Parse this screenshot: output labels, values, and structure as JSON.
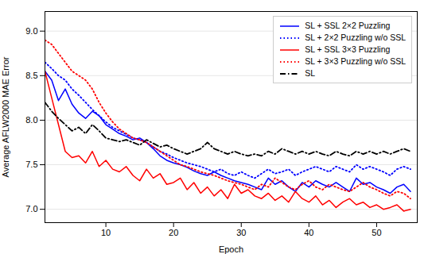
{
  "chart_data": {
    "type": "line",
    "xlabel": "Epoch",
    "ylabel": "Average AFLW2000 MAE Error",
    "x": [
      1,
      2,
      3,
      4,
      5,
      6,
      7,
      8,
      9,
      10,
      11,
      12,
      13,
      14,
      15,
      16,
      17,
      18,
      19,
      20,
      21,
      22,
      23,
      24,
      25,
      26,
      27,
      28,
      29,
      30,
      31,
      32,
      33,
      34,
      35,
      36,
      37,
      38,
      39,
      40,
      41,
      42,
      43,
      44,
      45,
      46,
      47,
      48,
      49,
      50,
      51,
      52,
      53,
      54,
      55
    ],
    "xlim": [
      1,
      56
    ],
    "ylim": [
      6.85,
      9.22
    ],
    "xticks": [
      10,
      20,
      30,
      40,
      50
    ],
    "yticks": [
      {
        "value": 7,
        "label": "7.0"
      },
      7.5,
      {
        "value": 8,
        "label": "8.0"
      },
      8.5,
      {
        "value": 9,
        "label": "9.0"
      }
    ],
    "grid": "y",
    "legend": "upper right",
    "series": [
      {
        "name": "SL + SSL 2×2 Puzzling",
        "color": "#0000ff",
        "line_style": "solid",
        "values": [
          8.55,
          8.45,
          8.22,
          8.35,
          8.18,
          8.08,
          8.02,
          8.1,
          8.05,
          7.95,
          7.9,
          7.85,
          7.82,
          7.78,
          7.8,
          7.75,
          7.68,
          7.6,
          7.55,
          7.52,
          7.5,
          7.47,
          7.43,
          7.4,
          7.38,
          7.42,
          7.38,
          7.35,
          7.32,
          7.3,
          7.28,
          7.25,
          7.22,
          7.35,
          7.28,
          7.32,
          7.25,
          7.2,
          7.3,
          7.25,
          7.32,
          7.28,
          7.25,
          7.3,
          7.25,
          7.2,
          7.35,
          7.28,
          7.3,
          7.25,
          7.22,
          7.18,
          7.25,
          7.28,
          7.2
        ]
      },
      {
        "name": "SL + 2×2 Puzzling w/o SSL",
        "color": "#0000ff",
        "line_style": "dotted",
        "values": [
          8.65,
          8.58,
          8.5,
          8.45,
          8.35,
          8.28,
          8.2,
          8.12,
          8.05,
          7.98,
          7.92,
          7.88,
          7.84,
          7.8,
          7.78,
          7.75,
          7.7,
          7.65,
          7.62,
          7.58,
          7.55,
          7.52,
          7.5,
          7.48,
          7.45,
          7.42,
          7.45,
          7.4,
          7.38,
          7.42,
          7.38,
          7.35,
          7.4,
          7.45,
          7.4,
          7.42,
          7.45,
          7.38,
          7.42,
          7.45,
          7.48,
          7.45,
          7.42,
          7.48,
          7.45,
          7.42,
          7.5,
          7.45,
          7.48,
          7.45,
          7.42,
          7.38,
          7.45,
          7.48,
          7.45
        ]
      },
      {
        "name": "SL + SSL 3×3 Puzzling",
        "color": "#ff0000",
        "line_style": "solid",
        "values": [
          8.55,
          8.25,
          7.95,
          7.65,
          7.58,
          7.6,
          7.52,
          7.65,
          7.48,
          7.55,
          7.45,
          7.42,
          7.48,
          7.38,
          7.32,
          7.45,
          7.35,
          7.4,
          7.28,
          7.3,
          7.35,
          7.22,
          7.3,
          7.18,
          7.25,
          7.15,
          7.22,
          7.12,
          7.28,
          7.18,
          7.22,
          7.15,
          7.12,
          7.18,
          7.1,
          7.15,
          7.08,
          7.2,
          7.12,
          7.08,
          7.15,
          7.05,
          7.1,
          7.02,
          7.08,
          7.12,
          7.05,
          7.08,
          7.02,
          7.05,
          7.0,
          7.02,
          7.05,
          6.98,
          7.0
        ]
      },
      {
        "name": "SL + 3×3 Puzzling w/o SSL",
        "color": "#ff0000",
        "line_style": "dotted",
        "values": [
          8.9,
          8.85,
          8.75,
          8.65,
          8.55,
          8.5,
          8.45,
          8.35,
          8.2,
          8.08,
          7.98,
          7.9,
          7.85,
          7.8,
          7.78,
          7.75,
          7.7,
          7.65,
          7.6,
          7.55,
          7.5,
          7.48,
          7.45,
          7.42,
          7.4,
          7.38,
          7.35,
          7.32,
          7.3,
          7.28,
          7.25,
          7.22,
          7.28,
          7.25,
          7.35,
          7.3,
          7.25,
          7.22,
          7.28,
          7.32,
          7.25,
          7.22,
          7.28,
          7.25,
          7.22,
          7.2,
          7.25,
          7.3,
          7.25,
          7.22,
          7.18,
          7.15,
          7.2,
          7.18,
          7.12
        ]
      },
      {
        "name": "SL",
        "color": "#000000",
        "line_style": "dashdot",
        "values": [
          8.2,
          8.1,
          8.02,
          7.95,
          7.88,
          7.92,
          7.85,
          7.95,
          7.88,
          7.8,
          7.78,
          7.76,
          7.78,
          7.75,
          7.72,
          7.78,
          7.74,
          7.7,
          7.72,
          7.68,
          7.65,
          7.62,
          7.65,
          7.68,
          7.75,
          7.68,
          7.65,
          7.62,
          7.65,
          7.62,
          7.6,
          7.62,
          7.6,
          7.65,
          7.62,
          7.68,
          7.65,
          7.62,
          7.65,
          7.62,
          7.65,
          7.62,
          7.6,
          7.65,
          7.62,
          7.6,
          7.65,
          7.62,
          7.65,
          7.62,
          7.65,
          7.62,
          7.65,
          7.68,
          7.65
        ]
      }
    ]
  }
}
